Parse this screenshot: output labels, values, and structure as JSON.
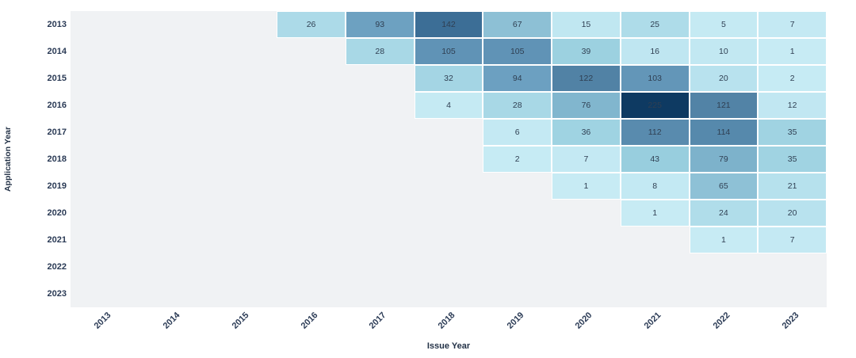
{
  "chart_data": {
    "type": "heatmap",
    "title": "",
    "xlabel": "Issue Year",
    "ylabel": "Application Year",
    "x_labels": [
      "2013",
      "2014",
      "2015",
      "2016",
      "2017",
      "2018",
      "2019",
      "2020",
      "2021",
      "2022",
      "2023"
    ],
    "y_labels": [
      "2013",
      "2014",
      "2015",
      "2016",
      "2017",
      "2018",
      "2019",
      "2020",
      "2021",
      "2022",
      "2023"
    ],
    "values": [
      [
        null,
        null,
        null,
        26,
        93,
        142,
        67,
        15,
        25,
        5,
        7
      ],
      [
        null,
        null,
        null,
        null,
        28,
        105,
        105,
        39,
        16,
        10,
        1
      ],
      [
        null,
        null,
        null,
        null,
        null,
        32,
        94,
        122,
        103,
        20,
        2
      ],
      [
        null,
        null,
        null,
        null,
        null,
        4,
        28,
        76,
        225,
        121,
        12
      ],
      [
        null,
        null,
        null,
        null,
        null,
        null,
        6,
        36,
        112,
        114,
        35
      ],
      [
        null,
        null,
        null,
        null,
        null,
        null,
        2,
        7,
        43,
        79,
        35
      ],
      [
        null,
        null,
        null,
        null,
        null,
        null,
        null,
        1,
        8,
        65,
        21
      ],
      [
        null,
        null,
        null,
        null,
        null,
        null,
        null,
        null,
        1,
        24,
        20
      ],
      [
        null,
        null,
        null,
        null,
        null,
        null,
        null,
        null,
        null,
        1,
        7
      ],
      [
        null,
        null,
        null,
        null,
        null,
        null,
        null,
        null,
        null,
        null,
        null
      ],
      [
        null,
        null,
        null,
        null,
        null,
        null,
        null,
        null,
        null,
        null,
        null
      ]
    ],
    "zmin": 1,
    "zmax": 225,
    "colorscale": [
      {
        "t": 0.0,
        "color": "#c7ebf4"
      },
      {
        "t": 0.07,
        "color": "#bfe6f1"
      },
      {
        "t": 0.12,
        "color": "#a8d8e6"
      },
      {
        "t": 0.19,
        "color": "#97cede"
      },
      {
        "t": 0.3,
        "color": "#8dbfd5"
      },
      {
        "t": 0.36,
        "color": "#79afc9"
      },
      {
        "t": 0.42,
        "color": "#6b9fc0"
      },
      {
        "t": 0.47,
        "color": "#5f92b5"
      },
      {
        "t": 0.51,
        "color": "#5587aa"
      },
      {
        "t": 0.55,
        "color": "#5081a4"
      },
      {
        "t": 0.63,
        "color": "#3c6e96"
      },
      {
        "t": 0.8,
        "color": "#26557d"
      },
      {
        "t": 1.0,
        "color": "#0e3a62"
      }
    ],
    "plot_bg": "#f0f2f4",
    "cell_gap_color": "#ffffff",
    "tick_color": "#2a3a55",
    "value_text_color": "#2f3f52",
    "grid": false,
    "legend": "none",
    "x_tick_angle": -45
  }
}
